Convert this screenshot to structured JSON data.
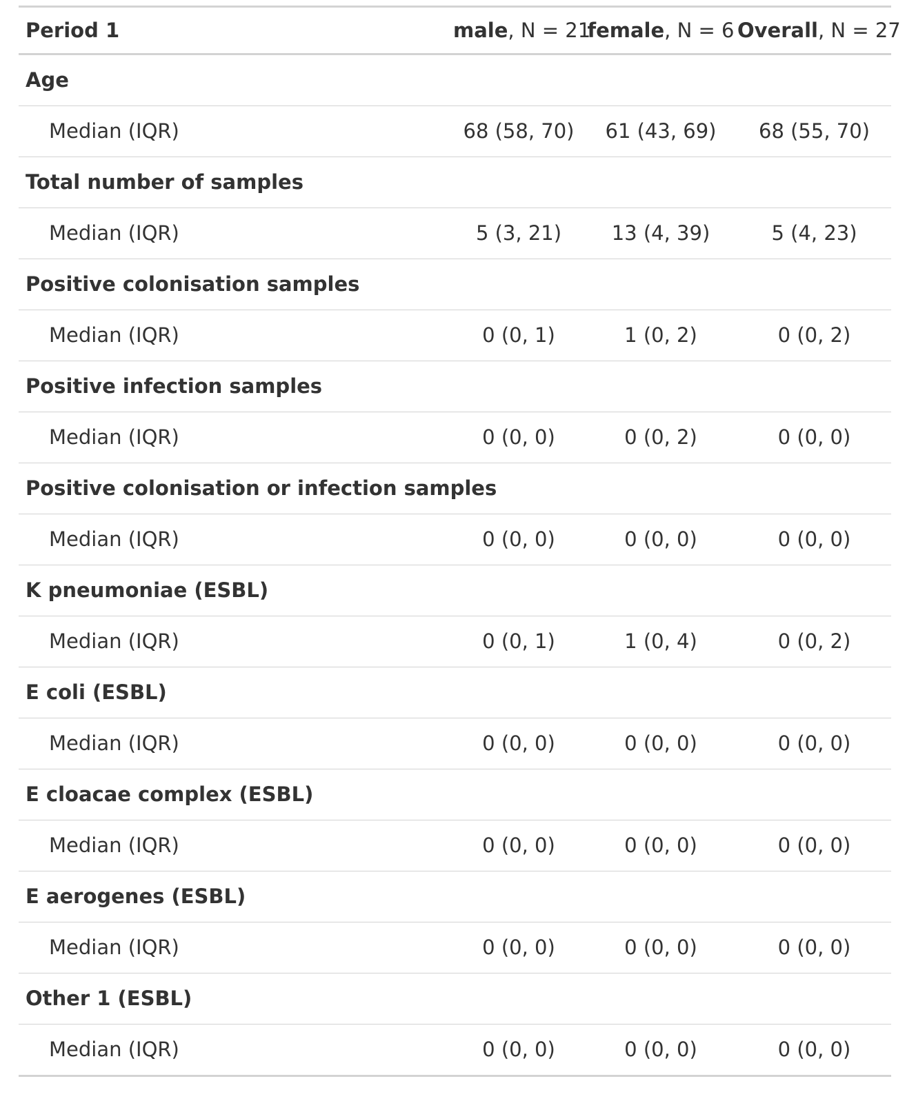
{
  "header": {
    "title": "Period 1",
    "columns": [
      {
        "name": "male",
        "n": ", N = 21"
      },
      {
        "name": "female",
        "n": ", N = 6"
      },
      {
        "name": "Overall",
        "n": ", N = 27"
      }
    ]
  },
  "rows": [
    {
      "variable": "Age",
      "stat": "Median (IQR)",
      "values": [
        "68 (58, 70)",
        "61 (43, 69)",
        "68 (55, 70)"
      ]
    },
    {
      "variable": "Total number of samples",
      "stat": "Median (IQR)",
      "values": [
        "5 (3, 21)",
        "13 (4, 39)",
        "5 (4, 23)"
      ]
    },
    {
      "variable": "Positive colonisation samples",
      "stat": "Median (IQR)",
      "values": [
        "0 (0, 1)",
        "1 (0, 2)",
        "0 (0, 2)"
      ]
    },
    {
      "variable": "Positive infection samples",
      "stat": "Median (IQR)",
      "values": [
        "0 (0, 0)",
        "0 (0, 2)",
        "0 (0, 0)"
      ]
    },
    {
      "variable": "Positive colonisation or infection samples",
      "stat": "Median (IQR)",
      "values": [
        "0 (0, 0)",
        "0 (0, 0)",
        "0 (0, 0)"
      ]
    },
    {
      "variable": "K pneumoniae (ESBL)",
      "stat": "Median (IQR)",
      "values": [
        "0 (0, 1)",
        "1 (0, 4)",
        "0 (0, 2)"
      ]
    },
    {
      "variable": "E coli (ESBL)",
      "stat": "Median (IQR)",
      "values": [
        "0 (0, 0)",
        "0 (0, 0)",
        "0 (0, 0)"
      ]
    },
    {
      "variable": "E cloacae complex (ESBL)",
      "stat": "Median (IQR)",
      "values": [
        "0 (0, 0)",
        "0 (0, 0)",
        "0 (0, 0)"
      ]
    },
    {
      "variable": "E aerogenes (ESBL)",
      "stat": "Median (IQR)",
      "values": [
        "0 (0, 0)",
        "0 (0, 0)",
        "0 (0, 0)"
      ]
    },
    {
      "variable": "Other 1 (ESBL)",
      "stat": "Median (IQR)",
      "values": [
        "0 (0, 0)",
        "0 (0, 0)",
        "0 (0, 0)"
      ]
    }
  ]
}
